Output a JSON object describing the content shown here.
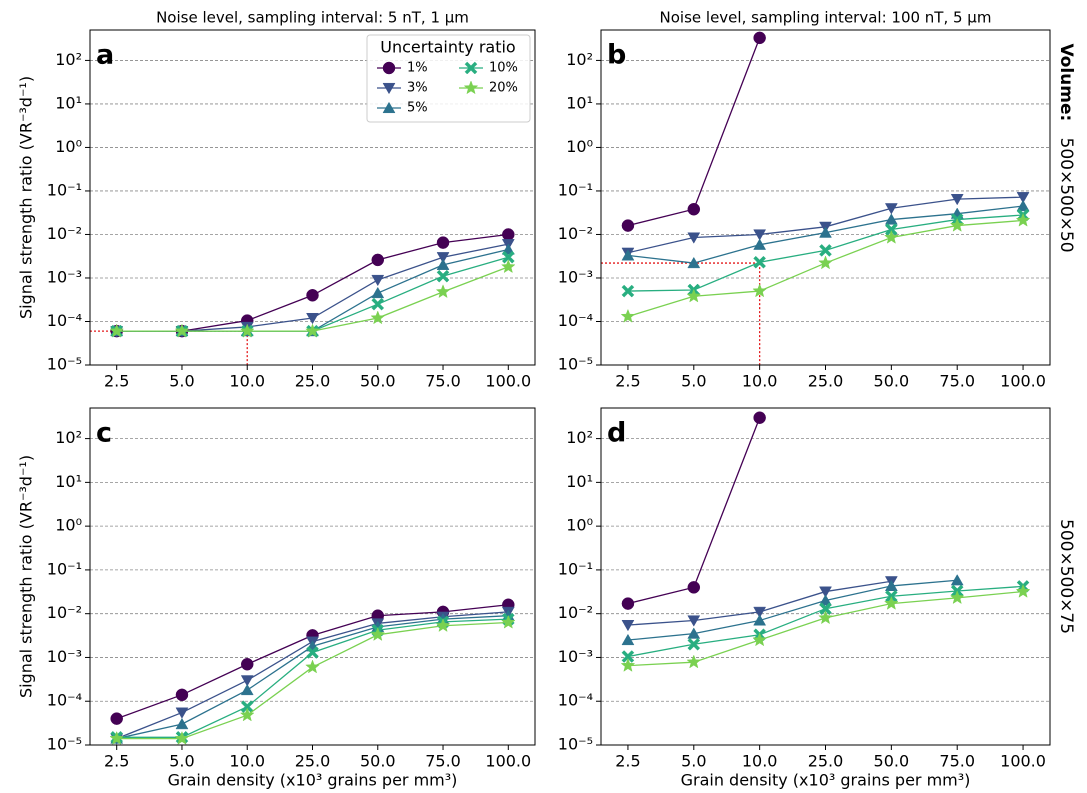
{
  "chart_data": [
    {
      "type": "line",
      "label": "a",
      "title": "Noise level, sampling interval: 5 nT, 1 μm",
      "ylabel": "Signal strength ratio (VR⁻³d⁻¹)",
      "categories": [
        "2.5",
        "5.0",
        "10.0",
        "25.0",
        "50.0",
        "75.0",
        "100.0"
      ],
      "log_scale": true,
      "grid": true,
      "ylim": [
        1e-05,
        500
      ],
      "yticks": [
        {
          "value": 1e-05,
          "label": "10⁻⁵"
        },
        {
          "value": 0.0001,
          "label": "10⁻⁴"
        },
        {
          "value": 0.001,
          "label": "10⁻³"
        },
        {
          "value": 0.01,
          "label": "10⁻²"
        },
        {
          "value": 0.1,
          "label": "10⁻¹"
        },
        {
          "value": 1,
          "label": "10⁰"
        },
        {
          "value": 10,
          "label": "10¹"
        },
        {
          "value": 100,
          "label": "10²"
        }
      ],
      "legend": "upper right",
      "legend_title": "Uncertainty ratio",
      "reference": {
        "y": 6e-05,
        "x": "10.0",
        "color": "#e41a1c"
      },
      "series": [
        {
          "name": "1%",
          "color": "#440154",
          "marker": "circle",
          "values": [
            6e-05,
            6e-05,
            0.000105,
            0.0004,
            0.0026,
            0.0065,
            0.01
          ]
        },
        {
          "name": "3%",
          "color": "#3b528b",
          "marker": "triangle-down",
          "values": [
            6e-05,
            6e-05,
            7.5e-05,
            0.00012,
            0.0009,
            0.003,
            0.006
          ]
        },
        {
          "name": "5%",
          "color": "#2c728e",
          "marker": "triangle-up",
          "values": [
            6e-05,
            6e-05,
            6e-05,
            6e-05,
            0.00045,
            0.002,
            0.0045
          ]
        },
        {
          "name": "10%",
          "color": "#28ae80",
          "marker": "x",
          "values": [
            6e-05,
            6e-05,
            6e-05,
            6e-05,
            0.00025,
            0.0011,
            0.003
          ]
        },
        {
          "name": "20%",
          "color": "#7ad151",
          "marker": "star",
          "values": [
            6e-05,
            6e-05,
            6e-05,
            6e-05,
            0.00012,
            0.00048,
            0.0018
          ]
        }
      ]
    },
    {
      "type": "line",
      "label": "b",
      "title": "Noise level, sampling interval: 100 nT, 5 μm",
      "side_title": "Volume:",
      "side_label": "500×500×50",
      "categories": [
        "2.5",
        "5.0",
        "10.0",
        "25.0",
        "50.0",
        "75.0",
        "100.0"
      ],
      "log_scale": true,
      "grid": true,
      "ylim": [
        1e-05,
        500
      ],
      "yticks": [
        {
          "value": 1e-05,
          "label": "10⁻⁵"
        },
        {
          "value": 0.0001,
          "label": "10⁻⁴"
        },
        {
          "value": 0.001,
          "label": "10⁻³"
        },
        {
          "value": 0.01,
          "label": "10⁻²"
        },
        {
          "value": 0.1,
          "label": "10⁻¹"
        },
        {
          "value": 1,
          "label": "10⁰"
        },
        {
          "value": 10,
          "label": "10¹"
        },
        {
          "value": 100,
          "label": "10²"
        }
      ],
      "reference": {
        "y": 0.0022,
        "x": "10.0",
        "color": "#e41a1c"
      },
      "series": [
        {
          "color": "#440154",
          "marker": "circle",
          "values": [
            0.016,
            0.038,
            330,
            null,
            null,
            null,
            null
          ]
        },
        {
          "color": "#3b528b",
          "marker": "triangle-down",
          "values": [
            0.0038,
            0.0085,
            0.01,
            0.015,
            0.04,
            0.065,
            0.072
          ]
        },
        {
          "color": "#2c728e",
          "marker": "triangle-up",
          "values": [
            0.0033,
            0.0022,
            0.0058,
            0.011,
            0.022,
            0.03,
            0.045
          ]
        },
        {
          "color": "#28ae80",
          "marker": "x",
          "values": [
            0.0005,
            0.00053,
            0.0023,
            0.0043,
            0.013,
            0.022,
            0.028
          ]
        },
        {
          "color": "#7ad151",
          "marker": "star",
          "values": [
            0.00013,
            0.00038,
            0.0005,
            0.0022,
            0.0085,
            0.016,
            0.021
          ]
        }
      ]
    },
    {
      "type": "line",
      "label": "c",
      "ylabel": "Signal strength ratio (VR⁻³d⁻¹)",
      "xlabel": "Grain density (x10³ grains per mm³)",
      "categories": [
        "2.5",
        "5.0",
        "10.0",
        "25.0",
        "50.0",
        "75.0",
        "100.0"
      ],
      "log_scale": true,
      "grid": true,
      "ylim": [
        1e-05,
        500
      ],
      "yticks": [
        {
          "value": 1e-05,
          "label": "10⁻⁵"
        },
        {
          "value": 0.0001,
          "label": "10⁻⁴"
        },
        {
          "value": 0.001,
          "label": "10⁻³"
        },
        {
          "value": 0.01,
          "label": "10⁻²"
        },
        {
          "value": 0.1,
          "label": "10⁻¹"
        },
        {
          "value": 1,
          "label": "10⁰"
        },
        {
          "value": 10,
          "label": "10¹"
        },
        {
          "value": 100,
          "label": "10²"
        }
      ],
      "series": [
        {
          "color": "#440154",
          "marker": "circle",
          "values": [
            4e-05,
            0.00014,
            0.0007,
            0.0032,
            0.009,
            0.011,
            0.016
          ]
        },
        {
          "color": "#3b528b",
          "marker": "triangle-down",
          "values": [
            1.4e-05,
            5.5e-05,
            0.0003,
            0.0023,
            0.006,
            0.0085,
            0.011
          ]
        },
        {
          "color": "#2c728e",
          "marker": "triangle-up",
          "values": [
            1.4e-05,
            3e-05,
            0.00018,
            0.0018,
            0.005,
            0.0075,
            0.009
          ]
        },
        {
          "color": "#28ae80",
          "marker": "x",
          "values": [
            1.5e-05,
            1.5e-05,
            7.5e-05,
            0.0013,
            0.0042,
            0.0065,
            0.0075
          ]
        },
        {
          "color": "#7ad151",
          "marker": "star",
          "values": [
            1.4e-05,
            1.4e-05,
            4.8e-05,
            0.0006,
            0.0033,
            0.0053,
            0.0063
          ]
        }
      ]
    },
    {
      "type": "line",
      "label": "d",
      "xlabel": "Grain density (x10³ grains per mm³)",
      "side_label": "500×500×75",
      "categories": [
        "2.5",
        "5.0",
        "10.0",
        "25.0",
        "50.0",
        "75.0",
        "100.0"
      ],
      "log_scale": true,
      "grid": true,
      "ylim": [
        1e-05,
        500
      ],
      "yticks": [
        {
          "value": 1e-05,
          "label": "10⁻⁵"
        },
        {
          "value": 0.0001,
          "label": "10⁻⁴"
        },
        {
          "value": 0.001,
          "label": "10⁻³"
        },
        {
          "value": 0.01,
          "label": "10⁻²"
        },
        {
          "value": 0.1,
          "label": "10⁻¹"
        },
        {
          "value": 1,
          "label": "10⁰"
        },
        {
          "value": 10,
          "label": "10¹"
        },
        {
          "value": 100,
          "label": "10²"
        }
      ],
      "series": [
        {
          "color": "#440154",
          "marker": "circle",
          "values": [
            0.017,
            0.04,
            300,
            null,
            null,
            null,
            null
          ]
        },
        {
          "color": "#3b528b",
          "marker": "triangle-down",
          "values": [
            0.0055,
            0.007,
            0.011,
            0.032,
            0.055,
            null,
            null
          ]
        },
        {
          "color": "#2c728e",
          "marker": "triangle-up",
          "values": [
            0.0025,
            0.0035,
            0.007,
            0.02,
            0.043,
            0.058,
            null
          ]
        },
        {
          "color": "#28ae80",
          "marker": "x",
          "values": [
            0.00105,
            0.002,
            0.0033,
            0.013,
            0.025,
            0.033,
            0.042
          ]
        },
        {
          "color": "#7ad151",
          "marker": "star",
          "values": [
            0.00065,
            0.00078,
            0.0025,
            0.008,
            0.017,
            0.023,
            0.032
          ]
        }
      ]
    }
  ]
}
